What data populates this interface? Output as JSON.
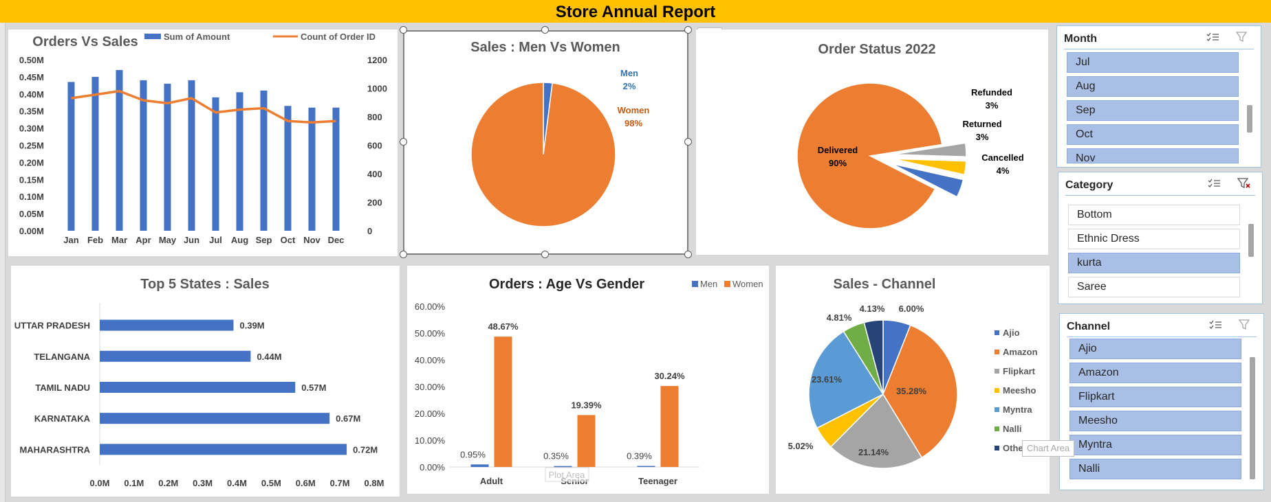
{
  "title": "Store Annual Report",
  "charts": {
    "orders_vs_sales": {
      "title": "Orders Vs Sales",
      "legend": [
        "Sum of Amount",
        "Count of Order ID"
      ]
    },
    "men_women": {
      "title": "Sales : Men Vs Women",
      "men_label": "Men",
      "men_pct": "2%",
      "women_label": "Women",
      "women_pct": "98%"
    },
    "order_status": {
      "title": "Order Status 2022"
    },
    "top_states": {
      "title": "Top 5 States : Sales"
    },
    "age_gender": {
      "title": "Orders : Age Vs Gender",
      "legend": [
        "Men",
        "Women"
      ],
      "plot_area_label": "Plot Area"
    },
    "sales_channel": {
      "title": "Sales - Channel"
    }
  },
  "chart_data": [
    {
      "type": "bar",
      "title": "Orders Vs Sales",
      "categories": [
        "Jan",
        "Feb",
        "Mar",
        "Apr",
        "May",
        "Jun",
        "Jul",
        "Aug",
        "Sep",
        "Oct",
        "Nov",
        "Dec"
      ],
      "series": [
        {
          "name": "Sum of Amount",
          "type": "bar",
          "axis": "left",
          "values": [
            0.435,
            0.45,
            0.47,
            0.44,
            0.43,
            0.44,
            0.39,
            0.405,
            0.41,
            0.365,
            0.36,
            0.36
          ]
        },
        {
          "name": "Count of Order ID",
          "type": "line",
          "axis": "right",
          "values": [
            930,
            955,
            980,
            915,
            895,
            930,
            830,
            850,
            860,
            770,
            760,
            770
          ]
        }
      ],
      "y_left_ticks": [
        "0.00M",
        "0.05M",
        "0.10M",
        "0.15M",
        "0.20M",
        "0.25M",
        "0.30M",
        "0.35M",
        "0.40M",
        "0.45M",
        "0.50M"
      ],
      "y_right_ticks": [
        "0",
        "200",
        "400",
        "600",
        "800",
        "1000",
        "1200"
      ],
      "ylim_left": [
        0,
        0.5
      ],
      "ylim_right": [
        0,
        1200
      ],
      "colors": {
        "bar": "#4472c4",
        "line": "#ed7d31"
      }
    },
    {
      "type": "pie",
      "title": "Sales : Men Vs Women",
      "labels": [
        "Men",
        "Women"
      ],
      "values": [
        2,
        98
      ],
      "colors": [
        "#4472c4",
        "#ed7d31"
      ]
    },
    {
      "type": "pie",
      "title": "Order Status 2022",
      "labels": [
        "Delivered",
        "Refunded",
        "Returned",
        "Cancelled"
      ],
      "values": [
        90,
        3,
        3,
        4
      ],
      "value_labels": [
        "90%",
        "3%",
        "3%",
        "4%"
      ],
      "colors": [
        "#ed7d31",
        "#a5a5a5",
        "#ffc000",
        "#4472c4"
      ],
      "exploded": true
    },
    {
      "type": "bar",
      "orientation": "horizontal",
      "title": "Top 5 States : Sales",
      "categories": [
        "UTTAR PRADESH",
        "TELANGANA",
        "TAMIL NADU",
        "KARNATAKA",
        "MAHARASHTRA"
      ],
      "values": [
        0.39,
        0.44,
        0.57,
        0.67,
        0.72
      ],
      "value_labels": [
        "0.39M",
        "0.44M",
        "0.57M",
        "0.67M",
        "0.72M"
      ],
      "x_ticks": [
        "0.0M",
        "0.1M",
        "0.2M",
        "0.3M",
        "0.4M",
        "0.5M",
        "0.6M",
        "0.7M",
        "0.8M"
      ],
      "xlim": [
        0,
        0.8
      ],
      "color": "#4472c4"
    },
    {
      "type": "bar",
      "title": "Orders : Age Vs Gender",
      "categories": [
        "Adult",
        "Senior",
        "Teenager"
      ],
      "series": [
        {
          "name": "Men",
          "values": [
            0.95,
            0.35,
            0.39
          ],
          "value_labels": [
            "0.95%",
            "0.35%",
            "0.39%"
          ]
        },
        {
          "name": "Women",
          "values": [
            48.67,
            19.39,
            30.24
          ],
          "value_labels": [
            "48.67%",
            "19.39%",
            "30.24%"
          ]
        }
      ],
      "y_ticks": [
        "0.00%",
        "10.00%",
        "20.00%",
        "30.00%",
        "40.00%",
        "50.00%",
        "60.00%"
      ],
      "ylim": [
        0,
        60
      ],
      "colors": [
        "#4472c4",
        "#ed7d31"
      ],
      "legend": "top-right"
    },
    {
      "type": "pie",
      "title": "Sales - Channel",
      "labels": [
        "Ajio",
        "Amazon",
        "Flipkart",
        "Meesho",
        "Myntra",
        "Nalli",
        "Others"
      ],
      "values": [
        6.0,
        35.28,
        21.14,
        5.02,
        23.61,
        4.81,
        4.13
      ],
      "value_labels": [
        "6.00%",
        "35.28%",
        "21.14%",
        "5.02%",
        "23.61%",
        "4.81%",
        "4.13%"
      ],
      "colors": [
        "#4472c4",
        "#ed7d31",
        "#a5a5a5",
        "#ffc000",
        "#5b9bd5",
        "#70ad47",
        "#264478"
      ],
      "legend": "right",
      "legend_labels": [
        "Ajio",
        "Amazon",
        "Flipkart",
        "Meesho",
        "Myntra",
        "Nalli",
        "Others"
      ]
    }
  ],
  "slicers": {
    "month": {
      "title": "Month",
      "items": [
        {
          "label": "Jul",
          "selected": true
        },
        {
          "label": "Aug",
          "selected": true
        },
        {
          "label": "Sep",
          "selected": true
        },
        {
          "label": "Oct",
          "selected": true
        },
        {
          "label": "Nov",
          "selected": true
        }
      ]
    },
    "category": {
      "title": "Category",
      "items": [
        {
          "label": "Bottom",
          "selected": false
        },
        {
          "label": "Ethnic Dress",
          "selected": false
        },
        {
          "label": "kurta",
          "selected": true
        },
        {
          "label": "Saree",
          "selected": false
        }
      ]
    },
    "channel": {
      "title": "Channel",
      "items": [
        {
          "label": "Ajio",
          "selected": true
        },
        {
          "label": "Amazon",
          "selected": true
        },
        {
          "label": "Flipkart",
          "selected": true
        },
        {
          "label": "Meesho",
          "selected": true
        },
        {
          "label": "Myntra",
          "selected": true
        },
        {
          "label": "Nalli",
          "selected": true
        }
      ]
    }
  },
  "tooltip": "Chart Area",
  "icons": {
    "add": "plus-icon",
    "style": "paintbrush-icon",
    "multiselect": "multi-select-icon",
    "clear": "clear-filter-icon"
  }
}
